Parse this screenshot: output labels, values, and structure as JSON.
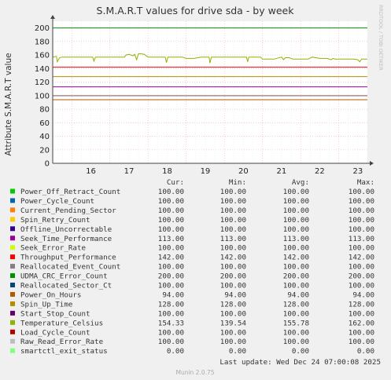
{
  "chart_data": {
    "type": "line",
    "title": "S.M.A.R.T values for drive sda - by week",
    "ylabel": "Attribute S.M.A.R.T value",
    "ylim": [
      0,
      210
    ],
    "yticks": [
      0,
      20,
      40,
      60,
      80,
      100,
      120,
      140,
      160,
      180,
      200
    ],
    "xlim": [
      15.5,
      23.75
    ],
    "x_ticks": [
      "16",
      "17",
      "18",
      "19",
      "20",
      "21",
      "22",
      "23"
    ],
    "grid": true,
    "columns": [
      "Cur:",
      "Min:",
      "Avg:",
      "Max:"
    ],
    "series": [
      {
        "name": "Power_Off_Retract_Count",
        "color": "#00cc00",
        "cur": "100.00",
        "min": "100.00",
        "avg": "100.00",
        "max": "100.00",
        "constant": 100
      },
      {
        "name": "Power_Cycle_Count",
        "color": "#0066b3",
        "cur": "100.00",
        "min": "100.00",
        "avg": "100.00",
        "max": "100.00",
        "constant": 100
      },
      {
        "name": "Current_Pending_Sector",
        "color": "#ff8000",
        "cur": "100.00",
        "min": "100.00",
        "avg": "100.00",
        "max": "100.00",
        "constant": 100
      },
      {
        "name": "Spin_Retry_Count",
        "color": "#ffcc00",
        "cur": "100.00",
        "min": "100.00",
        "avg": "100.00",
        "max": "100.00",
        "constant": 100
      },
      {
        "name": "Offline_Uncorrectable",
        "color": "#330099",
        "cur": "100.00",
        "min": "100.00",
        "avg": "100.00",
        "max": "100.00",
        "constant": 100
      },
      {
        "name": "Seek_Time_Performance",
        "color": "#990099",
        "cur": "113.00",
        "min": "113.00",
        "avg": "113.00",
        "max": "113.00",
        "constant": 113
      },
      {
        "name": "Seek_Error_Rate",
        "color": "#ccff00",
        "cur": "100.00",
        "min": "100.00",
        "avg": "100.00",
        "max": "100.00",
        "constant": 100
      },
      {
        "name": "Throughput_Performance",
        "color": "#ff0000",
        "cur": "142.00",
        "min": "142.00",
        "avg": "142.00",
        "max": "142.00",
        "constant": 142
      },
      {
        "name": "Reallocated_Event_Count",
        "color": "#808080",
        "cur": "100.00",
        "min": "100.00",
        "avg": "100.00",
        "max": "100.00",
        "constant": 100
      },
      {
        "name": "UDMA_CRC_Error_Count",
        "color": "#008f00",
        "cur": "200.00",
        "min": "200.00",
        "avg": "200.00",
        "max": "200.00",
        "constant": 200
      },
      {
        "name": "Reallocated_Sector_Ct",
        "color": "#00487d",
        "cur": "100.00",
        "min": "100.00",
        "avg": "100.00",
        "max": "100.00",
        "constant": 100
      },
      {
        "name": "Power_On_Hours",
        "color": "#b35a00",
        "cur": "94.00",
        "min": "94.00",
        "avg": "94.00",
        "max": "94.00",
        "constant": 94
      },
      {
        "name": "Spin_Up_Time",
        "color": "#b38f00",
        "cur": "128.00",
        "min": "128.00",
        "avg": "128.00",
        "max": "128.00",
        "constant": 128
      },
      {
        "name": "Start_Stop_Count",
        "color": "#6b006b",
        "cur": "100.00",
        "min": "100.00",
        "avg": "100.00",
        "max": "100.00",
        "constant": 100
      },
      {
        "name": "Temperature_Celsius",
        "color": "#8fb300",
        "cur": "154.33",
        "min": "139.54",
        "avg": "155.78",
        "max": "162.00",
        "x": [
          15.5,
          15.6,
          15.62,
          15.68,
          15.75,
          16.0,
          16.3,
          16.55,
          16.58,
          16.62,
          16.8,
          17.0,
          17.2,
          17.38,
          17.42,
          17.5,
          17.6,
          17.65,
          17.7,
          17.75,
          17.8,
          17.9,
          18.0,
          18.05,
          18.1,
          18.3,
          18.45,
          18.48,
          18.52,
          18.7,
          18.9,
          18.95,
          19.0,
          19.1,
          19.2,
          19.4,
          19.5,
          19.6,
          19.62,
          19.66,
          19.8,
          20.0,
          20.2,
          20.4,
          20.58,
          20.61,
          20.64,
          20.8,
          20.95,
          21.0,
          21.2,
          21.3,
          21.5,
          21.55,
          21.6,
          21.7,
          21.8,
          21.95,
          22.2,
          22.3,
          22.5,
          22.6,
          22.7,
          22.8,
          22.85,
          22.9,
          23.0,
          23.2,
          23.4,
          23.5,
          23.55,
          23.6,
          23.75
        ],
        "y": [
          157,
          158,
          150,
          156,
          157,
          157,
          157,
          157,
          151,
          157,
          157,
          157,
          157,
          157,
          160,
          161,
          159,
          161,
          153,
          162,
          162,
          161,
          157,
          157,
          157,
          157,
          157,
          149,
          157,
          157,
          157,
          156,
          155,
          155,
          155,
          157,
          157,
          157,
          148,
          157,
          157,
          157,
          157,
          157,
          157,
          150,
          157,
          157,
          157,
          154,
          154,
          154,
          157,
          153,
          156,
          156,
          154,
          154,
          154,
          157,
          155,
          155,
          155,
          153,
          155,
          154,
          154,
          154,
          154,
          153,
          150,
          154,
          154
        ]
      },
      {
        "name": "Load_Cycle_Count",
        "color": "#b30000",
        "cur": "100.00",
        "min": "100.00",
        "avg": "100.00",
        "max": "100.00",
        "constant": 100
      },
      {
        "name": "Raw_Read_Error_Rate",
        "color": "#bebebe",
        "cur": "100.00",
        "min": "100.00",
        "avg": "100.00",
        "max": "100.00",
        "constant": 100
      },
      {
        "name": "smartctl_exit_status",
        "color": "#80ff80",
        "cur": "0.00",
        "min": "0.00",
        "avg": "0.00",
        "max": "0.00",
        "constant": 0
      }
    ]
  },
  "last_update": "Last update: Wed Dec 24 07:00:08 2025",
  "side_label": "RRDTOOL / TOBI OETIKER",
  "footer": "Munin 2.0.75"
}
